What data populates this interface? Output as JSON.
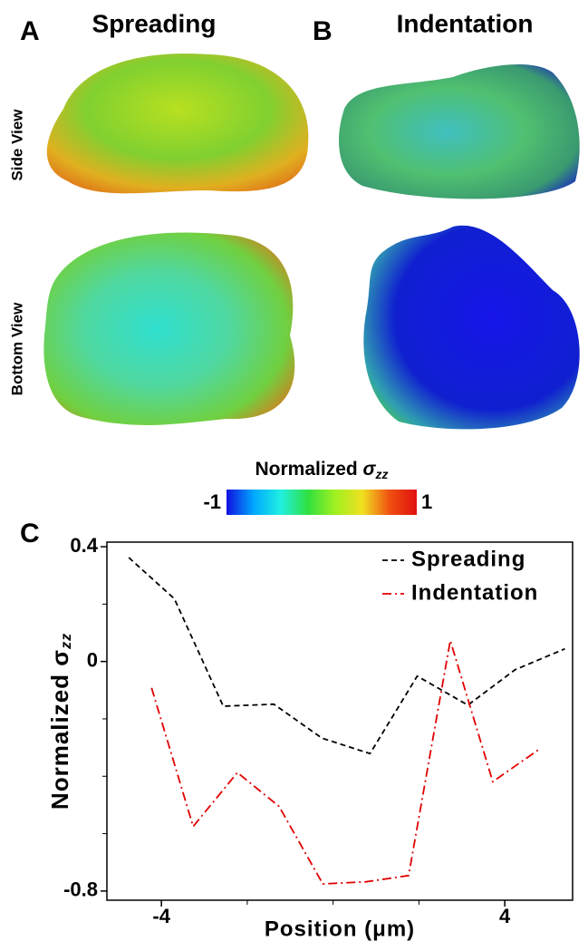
{
  "figure": {
    "panel_a": "A",
    "panel_b": "B",
    "panel_c": "C",
    "title_a": "Spreading",
    "title_b": "Indentation",
    "row_1": "Side View",
    "row_2": "Bottom View",
    "colorbar": {
      "label": "Normalized ",
      "symbol": "σ",
      "sub": "zz",
      "min": -1,
      "max": 1,
      "colors": [
        "#1010e0",
        "#00a8ff",
        "#20f0e0",
        "#30e040",
        "#a0f020",
        "#f0e020",
        "#f05010",
        "#e01010"
      ]
    }
  },
  "chart_data": {
    "type": "line",
    "xlabel": "Position (μm)",
    "ylabel": "Normalized σ",
    "ylabel_sub": "zz",
    "xlim": [
      -5.27,
      5.58
    ],
    "ylim": [
      -0.832,
      0.416
    ],
    "xticks": [
      -4,
      4
    ],
    "xminor": [
      -2,
      0,
      2
    ],
    "yticks": [
      0.4,
      0,
      -0.8
    ],
    "yminor": [
      0.2,
      -0.2,
      -0.4,
      -0.6
    ],
    "legend": "upper right",
    "series": [
      {
        "name": "Spreading",
        "color": "#000000",
        "dash": "6 4",
        "x": [
          -4.76,
          -3.7,
          -2.56,
          -1.38,
          -0.26,
          0.86,
          1.96,
          3.14,
          4.24,
          5.4
        ],
        "values": [
          0.362,
          0.219,
          -0.156,
          -0.149,
          -0.267,
          -0.321,
          -0.051,
          -0.152,
          -0.029,
          0.044
        ]
      },
      {
        "name": "Indentation",
        "color": "#e00000",
        "dash": "10 4 2 4",
        "x": [
          -4.23,
          -3.26,
          -2.23,
          -1.26,
          -0.24,
          0.77,
          1.76,
          2.73,
          3.72,
          4.78
        ],
        "values": [
          -0.092,
          -0.575,
          -0.387,
          -0.505,
          -0.775,
          -0.768,
          -0.746,
          0.073,
          -0.419,
          -0.308
        ]
      }
    ]
  }
}
